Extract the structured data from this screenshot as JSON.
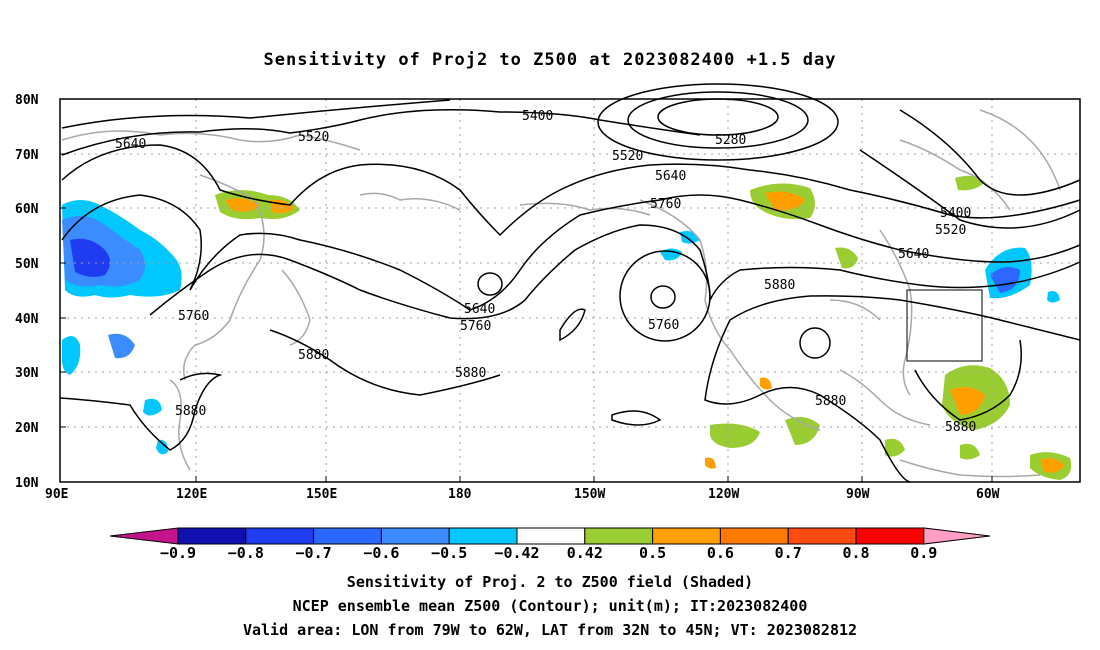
{
  "title": "Sensitivity of Proj2 to Z500 at 2023082400 +1.5 day",
  "lat_labels": [
    "80N",
    "70N",
    "60N",
    "50N",
    "40N",
    "30N",
    "20N",
    "10N"
  ],
  "lon_labels": [
    "90E",
    "120E",
    "150E",
    "180",
    "150W",
    "120W",
    "90W",
    "60W"
  ],
  "contour_labels": [
    "5400",
    "5520",
    "5640",
    "5280",
    "5520",
    "5640",
    "5760",
    "5400",
    "5520",
    "5640",
    "5640",
    "5760",
    "5760",
    "5760",
    "5880",
    "5880",
    "5880",
    "5880",
    "5880",
    "5880"
  ],
  "colorbar": {
    "labels": [
      "-0.9",
      "-0.8",
      "-0.7",
      "-0.6",
      "-0.5",
      "-0.42",
      "0.42",
      "0.5",
      "0.6",
      "0.7",
      "0.8",
      "0.9"
    ],
    "colors": [
      "#1010b0",
      "#1f3cf0",
      "#2c68ff",
      "#3a8cff",
      "#00c8ff",
      "#ffffff",
      "#9acd32",
      "#ff9f00",
      "#ff7a00",
      "#ff4a10",
      "#ff0000"
    ],
    "low_end_color": "#c4148c",
    "high_end_color": "#ff9ec4"
  },
  "captions": [
    "Sensitivity of Proj. 2 to Z500 field (Shaded)",
    "NCEP ensemble mean Z500 (Contour); unit(m); IT:2023082400",
    "Valid area: LON from 79W to 62W, LAT from 32N to 45N; VT: 2023082812"
  ],
  "valid_area": {
    "lon_from": "79W",
    "lon_to": "62W",
    "lat_from": "32N",
    "lat_to": "45N"
  }
}
